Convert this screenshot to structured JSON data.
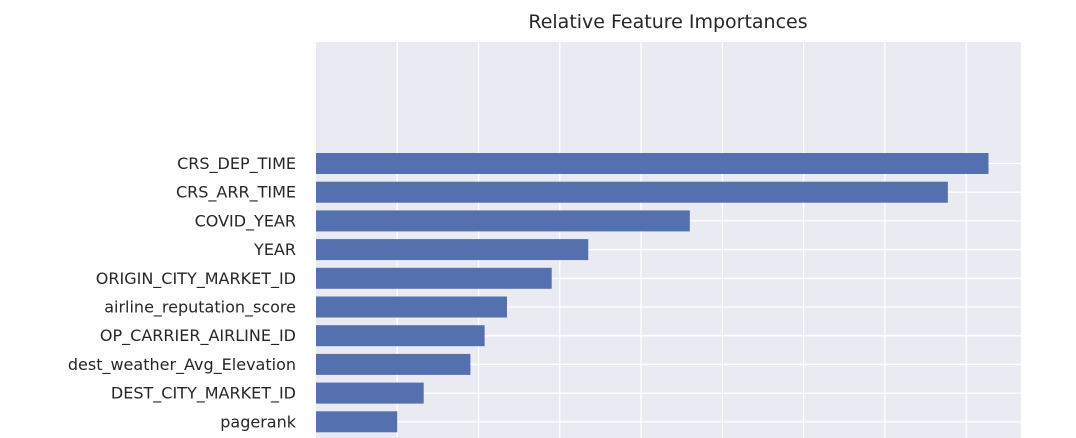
{
  "chart_data": {
    "type": "bar",
    "orientation": "horizontal",
    "title": "Relative Feature Importances",
    "xlabel": "",
    "ylabel": "",
    "grid": true,
    "xlim": [
      0,
      0.1735
    ],
    "categories": [
      "CRS_DEP_TIME",
      "CRS_ARR_TIME",
      "COVID_YEAR",
      "YEAR",
      "ORIGIN_CITY_MARKET_ID",
      "airline_reputation_score",
      "OP_CARRIER_AIRLINE_ID",
      "dest_weather_Avg_Elevation",
      "DEST_CITY_MARKET_ID",
      "pagerank"
    ],
    "values": [
      0.1655,
      0.1555,
      0.092,
      0.067,
      0.058,
      0.047,
      0.0415,
      0.038,
      0.0265,
      0.02
    ],
    "colors": {
      "bar": "#5470ae",
      "background": "#eaeaf2",
      "grid": "#ffffff",
      "text": "#262626"
    }
  }
}
